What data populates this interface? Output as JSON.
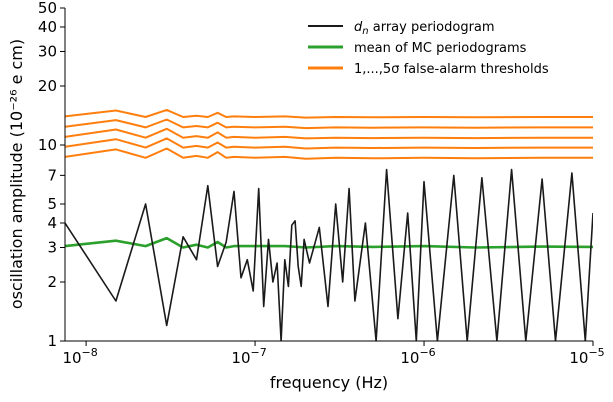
{
  "chart_data": {
    "type": "line",
    "title": "",
    "xlabel": "frequency (Hz)",
    "ylabel": "oscillation amplitude (10⁻²⁶ e cm)",
    "xscale": "log",
    "yscale": "log",
    "xlim": [
      7.5e-09,
      1e-05
    ],
    "ylim": [
      1,
      50
    ],
    "x_ticks": [
      {
        "value": 1e-08,
        "base": "10",
        "exp": "−8"
      },
      {
        "value": 1e-07,
        "base": "10",
        "exp": "−7"
      },
      {
        "value": 1e-06,
        "base": "10",
        "exp": "−6"
      },
      {
        "value": 1e-05,
        "base": "10",
        "exp": "−5"
      }
    ],
    "y_ticks": [
      {
        "value": 1,
        "label": "1"
      },
      {
        "value": 2,
        "label": "2"
      },
      {
        "value": 3,
        "label": "3"
      },
      {
        "value": 4,
        "label": "4"
      },
      {
        "value": 5,
        "label": "5"
      },
      {
        "value": 7,
        "label": "7"
      },
      {
        "value": 10,
        "label": "10"
      },
      {
        "value": 20,
        "label": "20"
      },
      {
        "value": 30,
        "label": "30"
      },
      {
        "value": 40,
        "label": "40"
      },
      {
        "value": 50,
        "label": "50"
      }
    ],
    "grid": false,
    "legend_position": "top-right",
    "legend": [
      {
        "label_main": "d",
        "label_sub": "n",
        "label_rest": " array periodogram",
        "color": "#1a1a1a"
      },
      {
        "label_main": "mean of MC periodograms",
        "label_sub": "",
        "label_rest": "",
        "color": "#2ca02c"
      },
      {
        "label_main": "1,...,5σ false-alarm thresholds",
        "label_sub": "",
        "label_rest": "",
        "color": "#ff7f0e"
      }
    ],
    "series": [
      {
        "color": "#1a1a1a",
        "x": [
          7.5e-09,
          1.5e-08,
          2.25e-08,
          3e-08,
          3.75e-08,
          4.5e-08,
          5.25e-08,
          6e-08,
          6.75e-08,
          7.5e-08,
          8.25e-08,
          9e-08,
          9.75e-08,
          1.05e-07,
          1.125e-07,
          1.2e-07,
          1.275e-07,
          1.35e-07,
          1.425e-07,
          1.5e-07,
          1.575e-07,
          1.65e-07,
          1.725e-07,
          1.8e-07,
          1.875e-07,
          1.95e-07,
          2.1e-07,
          2.4e-07,
          2.7e-07,
          3e-07,
          3.3e-07,
          3.6e-07,
          3.9e-07,
          4.5e-07,
          5.2e-07,
          6e-07,
          7e-07,
          8e-07,
          9e-07,
          1e-06,
          1.2e-06,
          1.5e-06,
          1.8e-06,
          2.2e-06,
          2.7e-06,
          3.3e-06,
          4e-06,
          5e-06,
          6e-06,
          7.5e-06,
          9e-06,
          1e-05
        ],
        "y": [
          4.0,
          1.6,
          5.0,
          1.2,
          3.4,
          2.6,
          6.2,
          2.4,
          3.2,
          5.8,
          2.1,
          2.6,
          1.8,
          6.0,
          1.5,
          3.3,
          2.0,
          2.5,
          1.0,
          2.6,
          1.9,
          3.9,
          4.1,
          2.4,
          1.9,
          3.3,
          2.5,
          3.8,
          1.5,
          5.0,
          2.0,
          6.0,
          1.6,
          4.0,
          1.0,
          7.5,
          1.3,
          4.5,
          1.0,
          6.5,
          1.0,
          7.0,
          1.0,
          6.8,
          1.0,
          7.5,
          1.0,
          6.7,
          1.0,
          7.2,
          1.0,
          4.5
        ]
      },
      {
        "color": "#2ca02c",
        "x": [
          7.5e-09,
          1.5e-08,
          2.25e-08,
          3e-08,
          3.75e-08,
          4.5e-08,
          5.25e-08,
          6e-08,
          6.75e-08,
          7.5e-08,
          1e-07,
          1.5e-07,
          2e-07,
          3e-07,
          5e-07,
          1e-06,
          2e-06,
          5e-06,
          1e-05
        ],
        "y": [
          3.05,
          3.25,
          3.05,
          3.35,
          3.0,
          3.1,
          3.0,
          3.2,
          3.0,
          3.05,
          3.05,
          3.05,
          3.0,
          3.05,
          3.02,
          3.05,
          3.0,
          3.03,
          3.02
        ]
      },
      {
        "color": "#ff7f0e",
        "x": [
          7.5e-09,
          1.5e-08,
          2.25e-08,
          3e-08,
          3.75e-08,
          4.5e-08,
          5.25e-08,
          6e-08,
          6.75e-08,
          7.5e-08,
          1e-07,
          1.5e-07,
          2e-07,
          3e-07,
          5e-07,
          1e-06,
          2e-06,
          5e-06,
          1e-05
        ],
        "y": [
          8.7,
          9.5,
          8.6,
          9.6,
          8.6,
          8.8,
          8.6,
          9.2,
          8.6,
          8.7,
          8.6,
          8.7,
          8.5,
          8.6,
          8.55,
          8.6,
          8.55,
          8.6,
          8.6
        ]
      },
      {
        "color": "#ff7f0e",
        "x": [
          7.5e-09,
          1.5e-08,
          2.25e-08,
          3e-08,
          3.75e-08,
          4.5e-08,
          5.25e-08,
          6e-08,
          6.75e-08,
          7.5e-08,
          1e-07,
          1.5e-07,
          2e-07,
          3e-07,
          5e-07,
          1e-06,
          2e-06,
          5e-06,
          1e-05
        ],
        "y": [
          9.8,
          10.7,
          9.7,
          10.8,
          9.7,
          9.9,
          9.7,
          10.3,
          9.7,
          9.8,
          9.7,
          9.8,
          9.6,
          9.7,
          9.65,
          9.7,
          9.65,
          9.7,
          9.7
        ]
      },
      {
        "color": "#ff7f0e",
        "x": [
          7.5e-09,
          1.5e-08,
          2.25e-08,
          3e-08,
          3.75e-08,
          4.5e-08,
          5.25e-08,
          6e-08,
          6.75e-08,
          7.5e-08,
          1e-07,
          1.5e-07,
          2e-07,
          3e-07,
          5e-07,
          1e-06,
          2e-06,
          5e-06,
          1e-05
        ],
        "y": [
          11.0,
          12.0,
          10.9,
          12.1,
          10.9,
          11.1,
          10.9,
          11.6,
          10.9,
          11.0,
          10.9,
          11.0,
          10.8,
          10.9,
          10.85,
          10.9,
          10.85,
          10.9,
          10.9
        ]
      },
      {
        "color": "#ff7f0e",
        "x": [
          7.5e-09,
          1.5e-08,
          2.25e-08,
          3e-08,
          3.75e-08,
          4.5e-08,
          5.25e-08,
          6e-08,
          6.75e-08,
          7.5e-08,
          1e-07,
          1.5e-07,
          2e-07,
          3e-07,
          5e-07,
          1e-06,
          2e-06,
          5e-06,
          1e-05
        ],
        "y": [
          12.4,
          13.4,
          12.3,
          13.5,
          12.3,
          12.5,
          12.3,
          13.0,
          12.3,
          12.4,
          12.3,
          12.4,
          12.2,
          12.3,
          12.25,
          12.3,
          12.25,
          12.3,
          12.3
        ]
      },
      {
        "color": "#ff7f0e",
        "x": [
          7.5e-09,
          1.5e-08,
          2.25e-08,
          3e-08,
          3.75e-08,
          4.5e-08,
          5.25e-08,
          6e-08,
          6.75e-08,
          7.5e-08,
          1e-07,
          1.5e-07,
          2e-07,
          3e-07,
          5e-07,
          1e-06,
          2e-06,
          5e-06,
          1e-05
        ],
        "y": [
          14.0,
          15.0,
          13.9,
          15.1,
          13.9,
          14.1,
          13.9,
          14.6,
          13.9,
          14.0,
          13.9,
          14.0,
          13.8,
          13.9,
          13.85,
          13.9,
          13.85,
          13.9,
          13.9
        ]
      }
    ]
  }
}
